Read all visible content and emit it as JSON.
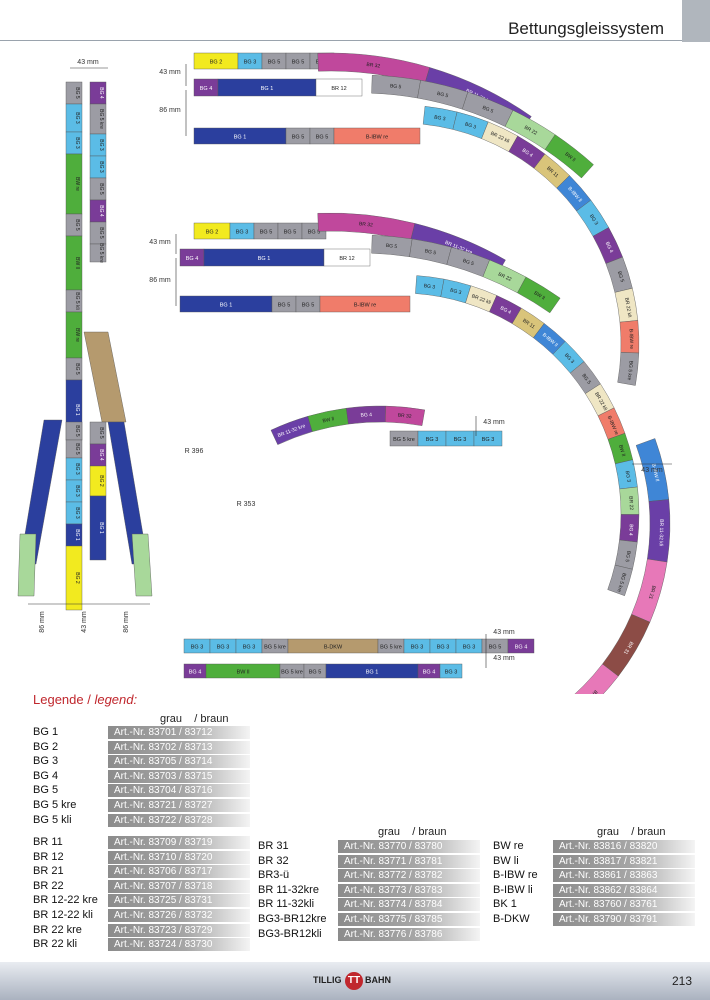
{
  "page": {
    "title": "Bettungsgleissystem",
    "number": "213"
  },
  "footer": {
    "logo_left": "TILLIG",
    "logo_mid": "TT",
    "logo_right": "BAHN"
  },
  "dimensions": {
    "d43_a": "43 mm",
    "d86_a": "86 mm",
    "d43_b": "43 mm",
    "d86_b": "86 mm",
    "d43_vert": "43 mm",
    "d43_left": "86 mm",
    "d43_mid": "43 mm",
    "d86_right": "86 mm",
    "d43_small": "43 mm",
    "d43_right": "43 mm",
    "d43_dkw1": "43 mm",
    "d43_dkw2": "43 mm",
    "d43_bottom": "43 mm",
    "r396": "R 396",
    "r353": "R 353",
    "r353_b": "R 353",
    "r396_b": "R 396"
  },
  "legend": {
    "title_de": "Legende /",
    "title_en": " legend:",
    "col_head": "grau    / braun",
    "group1": [
      {
        "name": "BG 1",
        "art": "Art.-Nr. 83701 / 83712"
      },
      {
        "name": "BG 2",
        "art": "Art.-Nr. 83702 / 83713"
      },
      {
        "name": "BG 3",
        "art": "Art.-Nr. 83705 / 83714"
      },
      {
        "name": "BG 4",
        "art": "Art.-Nr. 83703 / 83715"
      },
      {
        "name": "BG 5",
        "art": "Art.-Nr. 83704 / 83716"
      },
      {
        "name": "BG 5 kre",
        "art": "Art.-Nr. 83721 / 83727"
      },
      {
        "name": "BG 5 kli",
        "art": "Art.-Nr. 83722 / 83728"
      }
    ],
    "group2": [
      {
        "name": "BR 11",
        "art": "Art.-Nr. 83709 / 83719"
      },
      {
        "name": "BR 12",
        "art": "Art.-Nr. 83710 / 83720"
      },
      {
        "name": "BR 21",
        "art": "Art.-Nr. 83706 / 83717"
      },
      {
        "name": "BR 22",
        "art": "Art.-Nr. 83707 / 83718"
      },
      {
        "name": "BR 12-22 kre",
        "art": "Art.-Nr. 83725 / 83731"
      },
      {
        "name": "BR 12-22 kli",
        "art": "Art.-Nr. 83726 / 83732"
      },
      {
        "name": "BR 22 kre",
        "art": "Art.-Nr. 83723 / 83729"
      },
      {
        "name": "BR 22 kli",
        "art": "Art.-Nr. 83724 / 83730"
      }
    ],
    "group3": [
      {
        "name": "BR 31",
        "art": "Art.-Nr. 83770 / 83780"
      },
      {
        "name": "BR 32",
        "art": "Art.-Nr. 83771 / 83781"
      },
      {
        "name": "BR3-ü",
        "art": "Art.-Nr. 83772 / 83782"
      },
      {
        "name": "BR 11-32kre",
        "art": "Art.-Nr. 83773 / 83783"
      },
      {
        "name": "BR 11-32kli",
        "art": "Art.-Nr. 83774 / 83784"
      },
      {
        "name": "BG3-BR12kre",
        "art": "Art.-Nr. 83775 / 83785"
      },
      {
        "name": "BG3-BR12kli",
        "art": "Art.-Nr. 83776 / 83786"
      }
    ],
    "group4": [
      {
        "name": "BW re",
        "art": "Art.-Nr. 83816 / 83820"
      },
      {
        "name": "BW li",
        "art": "Art.-Nr. 83817 / 83821"
      },
      {
        "name": "B-IBW re",
        "art": "Art.-Nr. 83861 / 83863"
      },
      {
        "name": "B-IBW li",
        "art": "Art.-Nr. 83862 / 83864"
      },
      {
        "name": "BK 1",
        "art": "Art.-Nr. 83760 / 83761"
      },
      {
        "name": "B-DKW",
        "art": "Art.-Nr. 83790 / 83791"
      }
    ]
  },
  "colors": {
    "BG1": "#2b3f9e",
    "BG2": "#f2ea1f",
    "BG3": "#5bbce6",
    "BG4": "#7a3c98",
    "BG5": "#9c9ca4",
    "BR11": "#d9c47a",
    "BR12": "#ffffff",
    "BR21": "#e778b8",
    "BR22": "#a8d89a",
    "BR31": "#8c4c46",
    "BR32": "#c0489c",
    "BR1132": "#6a3fa7",
    "BW": "#4fae3c",
    "BIBW": "#f07c6a",
    "BK": "#e23a3a",
    "BIBWblue": "#3f86d6",
    "BDKW": "#b59a6e",
    "BR2238": "#efe6c4"
  },
  "tracks": {
    "t1": [
      "BG 2",
      "BG 3",
      "BG 5",
      "BG 5",
      "BG 5",
      "BR 32",
      "BR 11-32 kre"
    ],
    "t2": [
      "BG 4",
      "BG 1",
      "BR 12",
      "BG 5",
      "BG 5",
      "BG 5",
      "BR 22",
      "BW ll"
    ],
    "t3": [
      "BG 1",
      "BG 5",
      "BG 5",
      "B-IBW re",
      "BG 3",
      "BG 3",
      "BR 22 kli",
      "BG 4",
      "BR 11",
      "B-IBW ll",
      "BG 3",
      "BG 4",
      "BG 5",
      "BR 22 kli",
      "B-IBW re",
      "BG 5 kre"
    ],
    "t4": [
      "BG 2",
      "BG 3",
      "BG 5",
      "BG 5",
      "BG 5",
      "BR 32",
      "BR 11-32 kre"
    ],
    "t5": [
      "BG 4",
      "BG 1",
      "BR 12",
      "BG 5",
      "BG 5",
      "BG 5",
      "BR 22",
      "BW ll"
    ],
    "t6": [
      "BG 1",
      "BG 5",
      "BG 5",
      "B-IBW re",
      "BG 3",
      "BG 3",
      "BR 22 kli",
      "BG 4",
      "BR 11",
      "B-IBW ll",
      "BG 3",
      "BG 5",
      "BR 22 kli",
      "B-IBW re",
      "BW ll",
      "BG 3",
      "BR 22",
      "BG 4",
      "BG 5",
      "BG 5 kre"
    ],
    "vert_left": [
      "BG 5",
      "BG 3",
      "BG 3",
      "BW re",
      "BG 5",
      "BW ll",
      "BG 5 kli",
      "BW re",
      "BG 5",
      "BG 1",
      "BR 22",
      "BG 5"
    ],
    "vert_mid": [
      "BG 4",
      "BG 5 kre",
      "BG 3",
      "BG 3",
      "BG 5",
      "BG 4",
      "BG 5",
      "BG 5 kre",
      "B-DKW",
      "BG 5",
      "BG 5",
      "BG 3",
      "BG 3",
      "BG 3",
      "BG 1",
      "BG 2"
    ],
    "vert_right": [
      "BG 5",
      "BG 4",
      "BG 2",
      "BG 1",
      "BR 22",
      "BG 3"
    ],
    "small": [
      "BR 11-32 kre",
      "BW ll",
      "BG 4",
      "BR 32",
      "B-IBW re",
      "BG 5 kre",
      "BG 3",
      "BG 3",
      "BG 3",
      "BR 22"
    ],
    "dkw_top": [
      "BG 3",
      "BG 3",
      "BG 3",
      "BG 5 kre",
      "B-DKW",
      "BG 5 kre",
      "BG 3",
      "BG 3",
      "BG 3",
      "BG 5",
      "BG 4"
    ],
    "dkw_bot": [
      "BG 4",
      "BW ll",
      "BG 5 kre",
      "BG 5",
      "BG 1",
      "BG 4",
      "BG 3"
    ],
    "big": [
      "B-IBW ll",
      "BR 11-32 kli",
      "BR 21",
      "BR 31",
      "BR 21",
      "BR 31",
      "BR 22",
      "BR 32"
    ]
  }
}
